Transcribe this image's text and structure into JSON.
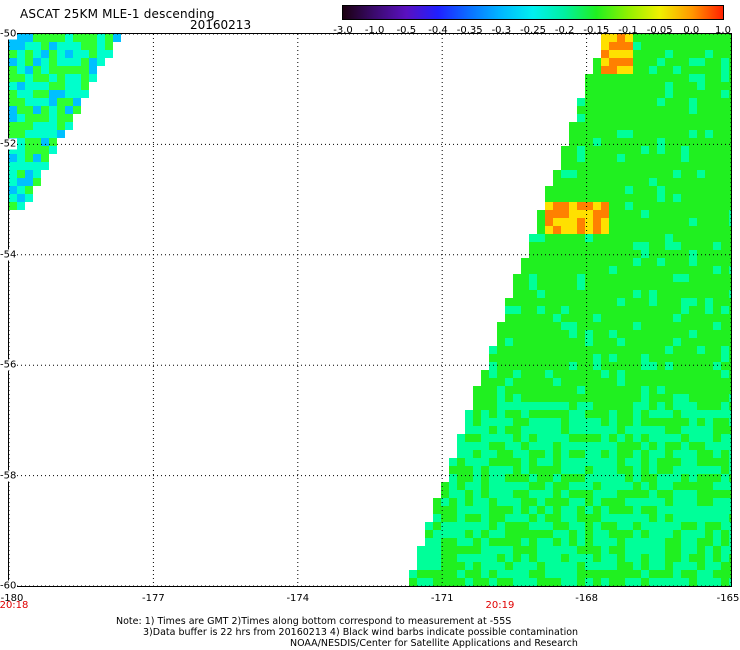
{
  "header": {
    "title": "ASCAT 25KM MLE-1 descending",
    "date": "20160213"
  },
  "colorbar": {
    "ticks": [
      "-3.0",
      "-1.0",
      "-0.5",
      "-0.4",
      "-0.35",
      "-0.3",
      "-0.25",
      "-0.2",
      "-0.15",
      "-0.1",
      "-0.05",
      "0.0",
      "1.0"
    ],
    "colors": [
      "#1a0010",
      "#3b0a6e",
      "#5a10c0",
      "#2020ff",
      "#0a70ff",
      "#00b8ff",
      "#00f0f0",
      "#00f0a0",
      "#20f020",
      "#90f000",
      "#f0f000",
      "#ff9a00",
      "#ff2000"
    ]
  },
  "map": {
    "lon_ticks": [
      "-180",
      "-177",
      "-174",
      "-171",
      "-168",
      "-165"
    ],
    "lat_ticks": [
      "-50",
      "-52",
      "-54",
      "-56",
      "-58",
      "-60"
    ],
    "times": [
      {
        "label": "20:18",
        "lon": -180
      },
      {
        "label": "20:19",
        "lon": -169.8
      }
    ],
    "swaths": [
      {
        "name": "left swath",
        "colors": [
          "#00ffcc",
          "#30ff30",
          "#00c0ff"
        ]
      },
      {
        "name": "right swath",
        "colors": [
          "#20f020",
          "#00ff99",
          "#ffe000",
          "#ff8000"
        ]
      }
    ]
  },
  "notes": [
    "Note: 1) Times are GMT 2)Times along bottom correspond to measurement at -55S",
    "3)Data buffer is 22 hrs from 20160213 4) Black wind barbs indicate possible contamination",
    "NOAA/NESDIS/Center for Satellite Applications and Research"
  ]
}
